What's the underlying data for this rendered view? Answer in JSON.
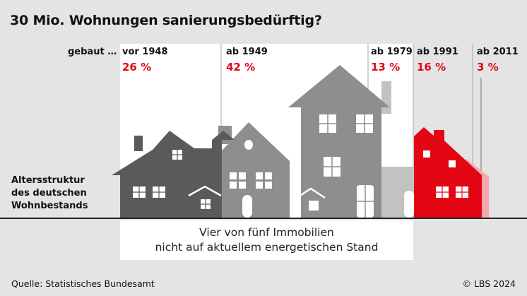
{
  "title": "30 Mio. Wohnungen sanierungsbedürftig?",
  "gebaut_label": "gebaut …",
  "chart_data": {
    "type": "bar",
    "title": "30 Mio. Wohnungen sanierungsbedürftig?",
    "categories": [
      "vor 1948",
      "ab 1949",
      "ab 1979",
      "ab 1991",
      "ab 2011"
    ],
    "values": [
      26,
      42,
      13,
      16,
      3
    ],
    "value_labels": [
      "26 %",
      "42 %",
      "13 %",
      "16 %",
      "3 %"
    ],
    "unit": "%",
    "category_axis_label": "gebaut …",
    "value_axis_label": "Altersstruktur des deutschen Wohnbestands",
    "series": [
      {
        "values": [
          26,
          42,
          13,
          16,
          3
        ]
      }
    ],
    "colors": [
      "#5a5a5a",
      "#8c8c8c",
      "#a4a4a4",
      "#e30613",
      "#f3a8ab"
    ],
    "grid": false
  },
  "altersstruktur": [
    "Altersstruktur",
    "des deutschen",
    "Wohnbestands"
  ],
  "note": [
    "Vier von fünf Immobilien",
    "nicht auf aktuellem energetischen Stand"
  ],
  "source": "Quelle: Statistisches Bundesamt",
  "copyright": "© LBS 2024",
  "colors": {
    "accent_red": "#e30613",
    "background": "#e4e4e4",
    "panel": "#ffffff"
  }
}
